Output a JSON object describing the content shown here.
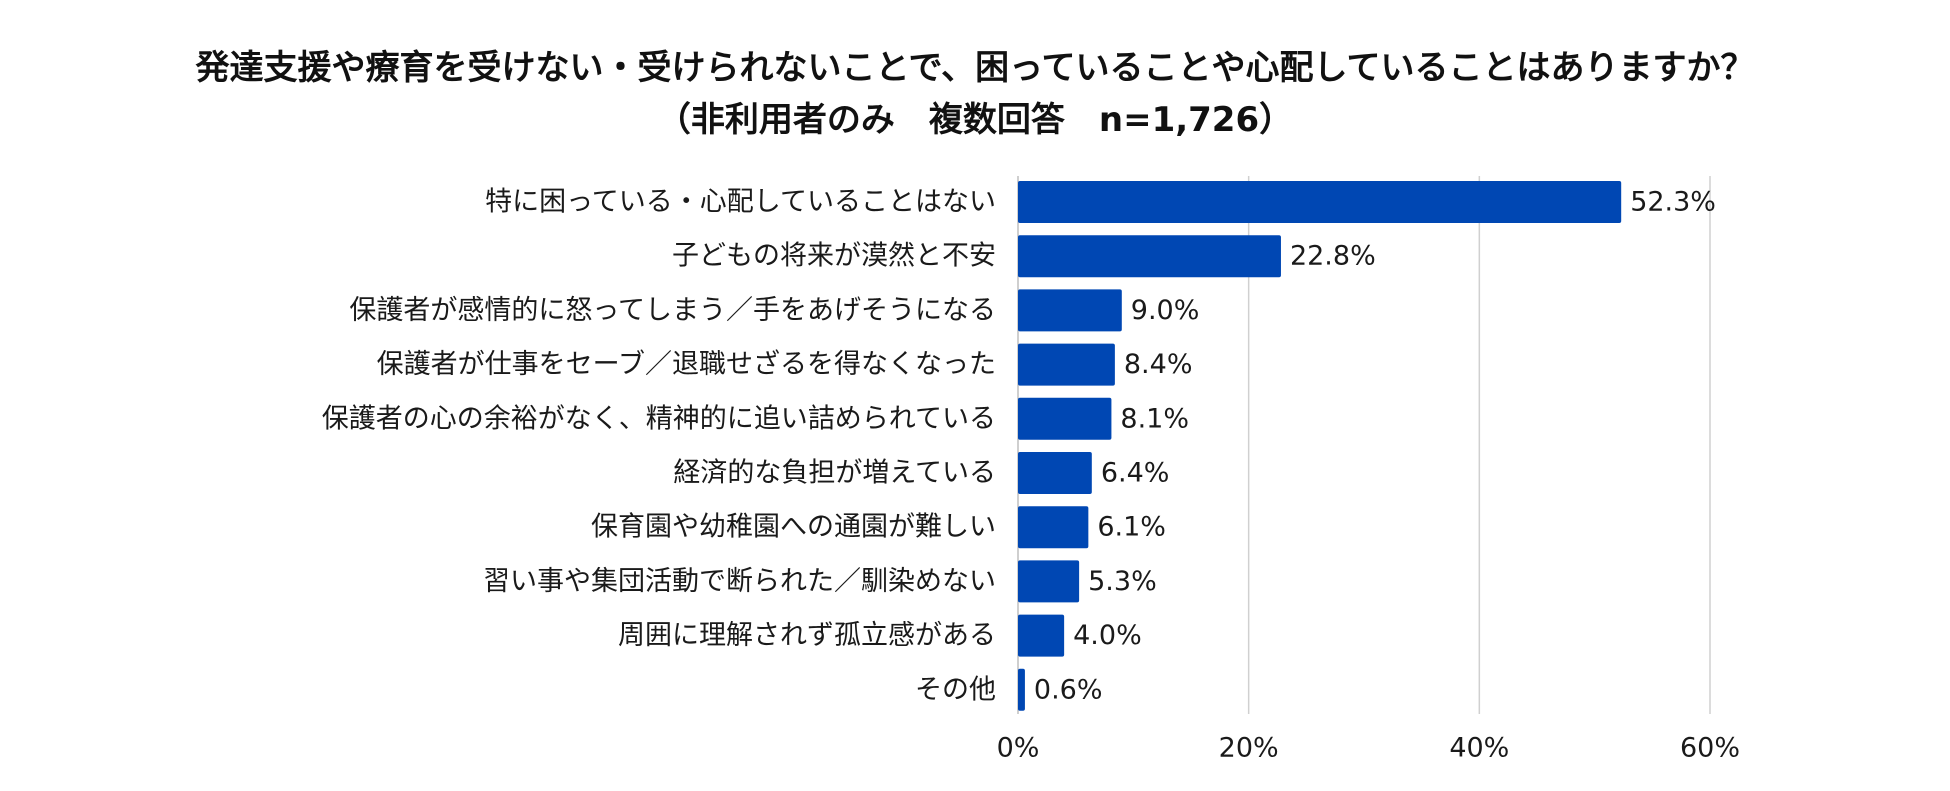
{
  "chart_data": {
    "type": "bar",
    "orientation": "horizontal",
    "title": "発達支援や療育を受けない・受けられないことで、困っていることや心配していることはありますか？",
    "subtitle": "（非利用者のみ　複数回答　n=1,726）",
    "categories": [
      "特に困っている・心配していることはない",
      "子どもの将来が漠然と不安",
      "保護者が感情的に怒ってしまう／手をあげそうになる",
      "保護者が仕事をセーブ／退職せざるを得なくなった",
      "保護者の心の余裕がなく、精神的に追い詰められている",
      "経済的な負担が増えている",
      "保育園や幼稚園への通園が難しい",
      "習い事や集団活動で断られた／馴染めない",
      "周囲に理解されず孤立感がある",
      "その他"
    ],
    "values": [
      52.3,
      22.8,
      9.0,
      8.4,
      8.1,
      6.4,
      6.1,
      5.3,
      4.0,
      0.6
    ],
    "data_labels": [
      "52.3%",
      "22.8%",
      "9.0%",
      "8.4%",
      "8.1%",
      "6.4%",
      "6.1%",
      "5.3%",
      "4.0%",
      "0.6%"
    ],
    "x_ticks": [
      0,
      20,
      40,
      60
    ],
    "x_tick_labels": [
      "0%",
      "20%",
      "40%",
      "60%"
    ],
    "xlim": [
      0,
      60
    ],
    "xlabel": "",
    "ylabel": "",
    "grid": true,
    "legend": "none",
    "colors": {
      "bar": "#0047b3",
      "grid": "#d0d0d0",
      "text": "#1a1a1a"
    }
  }
}
